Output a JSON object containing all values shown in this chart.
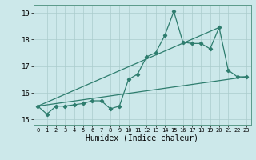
{
  "title": "",
  "xlabel": "Humidex (Indice chaleur)",
  "bg_color": "#cce8ea",
  "grid_color": "#aacccc",
  "line_color": "#2e7d6e",
  "xlim": [
    -0.5,
    23.5
  ],
  "ylim": [
    14.8,
    19.3
  ],
  "yticks": [
    15,
    16,
    17,
    18,
    19
  ],
  "xticks": [
    0,
    1,
    2,
    3,
    4,
    5,
    6,
    7,
    8,
    9,
    10,
    11,
    12,
    13,
    14,
    15,
    16,
    17,
    18,
    19,
    20,
    21,
    22,
    23
  ],
  "line1_x": [
    0,
    1,
    2,
    3,
    4,
    5,
    6,
    7,
    8,
    9,
    10,
    11,
    12,
    13,
    14,
    15,
    16,
    17,
    18,
    19,
    20,
    21,
    22,
    23
  ],
  "line1_y": [
    15.5,
    15.2,
    15.5,
    15.5,
    15.55,
    15.6,
    15.7,
    15.7,
    15.4,
    15.5,
    16.5,
    16.7,
    17.35,
    17.5,
    18.15,
    19.05,
    17.9,
    17.85,
    17.85,
    17.65,
    18.45,
    16.85,
    16.6,
    16.6
  ],
  "line2_x": [
    0,
    23
  ],
  "line2_y": [
    15.5,
    16.6
  ],
  "line3_x": [
    0,
    20
  ],
  "line3_y": [
    15.5,
    18.45
  ]
}
